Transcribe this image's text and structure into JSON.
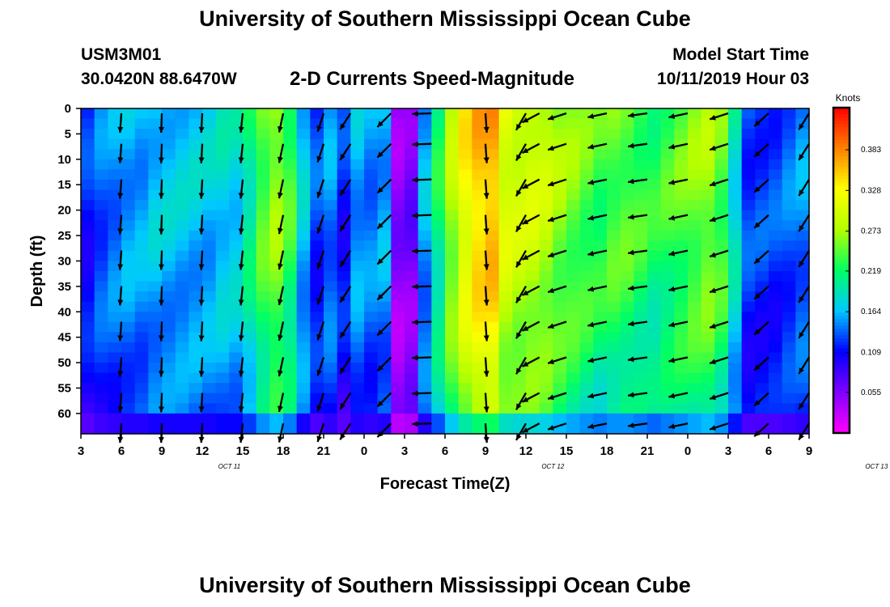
{
  "header": {
    "title": "University of Southern Mississippi Ocean Cube",
    "station_id": "USM3M01",
    "station_location": "30.0420N 88.6470W",
    "plot_title": "2-D Currents Speed-Magnitude",
    "model_start_label": "Model Start Time",
    "model_start_time": "10/11/2019 Hour 03"
  },
  "footer": {
    "title": "University of Southern Mississippi Ocean Cube"
  },
  "colors": {
    "arrow": "#000000",
    "axis": "#000000",
    "scale": [
      "#ff00ff",
      "#8000ff",
      "#0000ff",
      "#00c8ff",
      "#00ff64",
      "#b4ff00",
      "#ffff00",
      "#ff8000",
      "#ff0000"
    ]
  },
  "chart_data": {
    "type": "heatmap",
    "title": "2-D Currents Speed-Magnitude",
    "xlabel": "Forecast Time(Z)",
    "ylabel": "Depth (ft)",
    "x_ticks": [
      "3",
      "6",
      "9",
      "12",
      "15",
      "18",
      "21",
      "0",
      "3",
      "6",
      "9",
      "12",
      "15",
      "18",
      "21",
      "0",
      "3",
      "6",
      "9"
    ],
    "date_labels": [
      {
        "text": "OCT 11",
        "hour_index": 11
      },
      {
        "text": "OCT 12",
        "hour_index": 35
      },
      {
        "text": "OCT 13",
        "hour_index": 59
      }
    ],
    "xlim_hours": [
      0,
      54
    ],
    "y_ticks": [
      "0",
      "5",
      "10",
      "15",
      "20",
      "25",
      "30",
      "35",
      "40",
      "45",
      "50",
      "55",
      "60"
    ],
    "ylim_ft": [
      0,
      64
    ],
    "colorbar": {
      "label": "Knots",
      "range": [
        0.0,
        0.44
      ],
      "ticks": [
        "0.383",
        "0.328",
        "0.273",
        "0.219",
        "0.164",
        "0.109",
        "0.055"
      ]
    },
    "column_speeds_knots": [
      0.12,
      0.14,
      0.15,
      0.16,
      0.16,
      0.17,
      0.17,
      0.17,
      0.17,
      0.17,
      0.18,
      0.18,
      0.21,
      0.25,
      0.27,
      0.24,
      0.17,
      0.13,
      0.15,
      0.12,
      0.16,
      0.15,
      0.16,
      0.05,
      0.06,
      0.16,
      0.22,
      0.28,
      0.33,
      0.36,
      0.37,
      0.31,
      0.3,
      0.3,
      0.29,
      0.27,
      0.26,
      0.25,
      0.24,
      0.25,
      0.25,
      0.24,
      0.23,
      0.24,
      0.25,
      0.26,
      0.27,
      0.25,
      0.19,
      0.13,
      0.13,
      0.13,
      0.14,
      0.15
    ],
    "arrow_columns": [
      {
        "hour": 3,
        "dir_deg": 184
      },
      {
        "hour": 6,
        "dir_deg": 182
      },
      {
        "hour": 9,
        "dir_deg": 183
      },
      {
        "hour": 12,
        "dir_deg": 186
      },
      {
        "hour": 15,
        "dir_deg": 192
      },
      {
        "hour": 18,
        "dir_deg": 198
      },
      {
        "hour": 20,
        "dir_deg": 213
      },
      {
        "hour": 23,
        "dir_deg": 225
      },
      {
        "hour": 26,
        "dir_deg": 268
      },
      {
        "hour": 30,
        "dir_deg": 176
      },
      {
        "hour": 33,
        "dir_deg": 210
      },
      {
        "hour": 34,
        "dir_deg": 242
      },
      {
        "hour": 36,
        "dir_deg": 252
      },
      {
        "hour": 39,
        "dir_deg": 258
      },
      {
        "hour": 42,
        "dir_deg": 262
      },
      {
        "hour": 45,
        "dir_deg": 258
      },
      {
        "hour": 48,
        "dir_deg": 252
      },
      {
        "hour": 51,
        "dir_deg": 228
      },
      {
        "hour": 54,
        "dir_deg": 212
      }
    ]
  }
}
